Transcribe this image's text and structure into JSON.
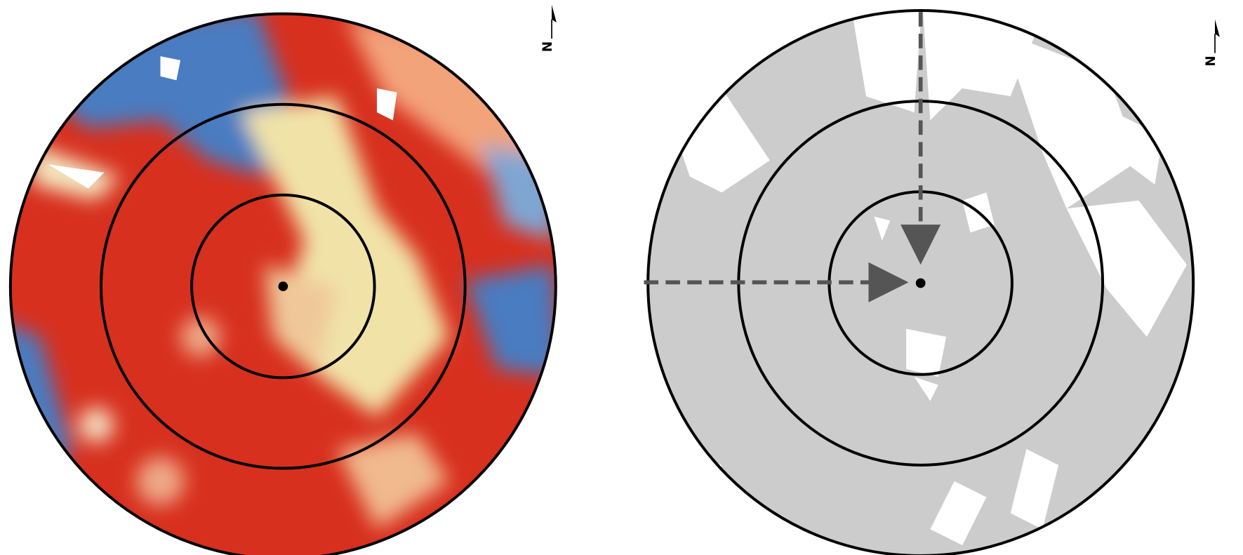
{
  "panels": [
    {
      "north_label": "N"
    },
    {
      "north_label": "N"
    }
  ]
}
